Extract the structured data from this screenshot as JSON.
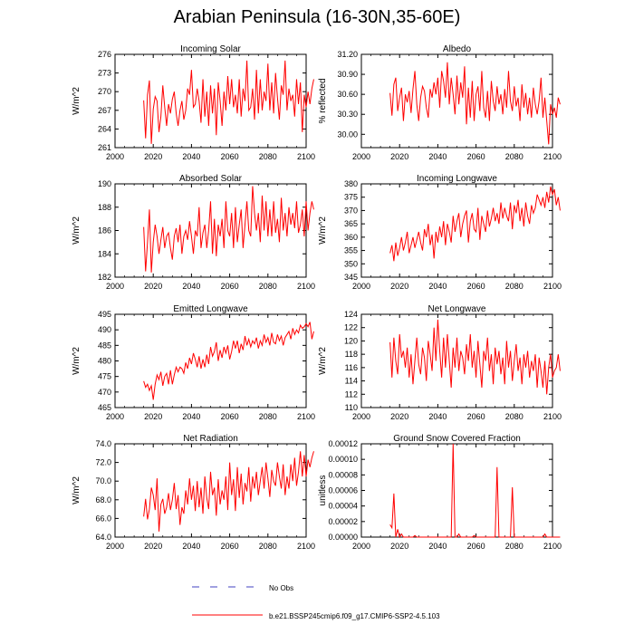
{
  "title": "Arabian Peninsula (16-30N,35-60E)",
  "colors": {
    "model": "#ff0000",
    "obs": "#4040c0",
    "axis": "#000000"
  },
  "legend": {
    "obs_label": "No Obs",
    "model_label": "b.e21.BSSP245cmip6.f09_g17.CMIP6-SSP2-4.5.103"
  },
  "chart_data": [
    {
      "type": "line",
      "id": "incoming-solar",
      "title": "Incoming Solar",
      "ylabel": "W/m^2",
      "xlim": [
        2000,
        2100
      ],
      "ylim": [
        261,
        276
      ],
      "xticks": [
        2000,
        2020,
        2040,
        2060,
        2080,
        2100
      ],
      "yticks": [
        261,
        264,
        267,
        270,
        273,
        276
      ],
      "ytick_labels": [
        "261",
        "264",
        "267",
        "270",
        "273",
        "276"
      ],
      "x_start": 2015,
      "values": [
        268.6,
        262.5,
        269.5,
        271.8,
        261.6,
        267.2,
        269.2,
        268.5,
        263.5,
        266.0,
        271.0,
        267.5,
        264.5,
        268.0,
        266.5,
        268.8,
        270.0,
        266.5,
        264.5,
        267.0,
        268.5,
        265.5,
        267.0,
        270.5,
        269.5,
        273.5,
        267.5,
        268.0,
        270.5,
        268.5,
        265.0,
        272.0,
        266.0,
        270.0,
        264.5,
        271.0,
        266.5,
        270.5,
        263.0,
        271.5,
        268.5,
        264.5,
        270.0,
        267.0,
        272.5,
        268.0,
        272.0,
        267.5,
        269.5,
        266.5,
        272.0,
        266.0,
        270.5,
        268.5,
        275.0,
        267.0,
        267.5,
        270.5,
        265.5,
        273.5,
        266.5,
        272.0,
        267.0,
        270.0,
        268.5,
        274.5,
        267.0,
        271.5,
        266.5,
        273.0,
        269.0,
        265.5,
        271.0,
        269.5,
        275.0,
        267.0,
        270.5,
        268.5,
        269.5,
        266.0,
        272.0,
        268.0,
        271.5,
        263.5,
        269.5,
        267.5,
        270.0,
        268.0,
        270.5,
        272.0
      ]
    },
    {
      "type": "line",
      "id": "albedo",
      "title": "Albedo",
      "ylabel": "% reflected",
      "xlim": [
        2000,
        2100
      ],
      "ylim": [
        29.8,
        31.2
      ],
      "xticks": [
        2000,
        2020,
        2040,
        2060,
        2080,
        2100
      ],
      "yticks": [
        30.0,
        30.3,
        30.6,
        30.9,
        31.2
      ],
      "ytick_labels": [
        "30.00",
        "30.30",
        "30.60",
        "30.90",
        "31.20"
      ],
      "x_start": 2015,
      "values": [
        30.62,
        30.28,
        30.75,
        30.85,
        30.35,
        30.55,
        30.7,
        30.2,
        30.6,
        30.48,
        30.65,
        30.32,
        30.68,
        30.95,
        30.45,
        30.2,
        30.55,
        30.72,
        30.65,
        30.4,
        30.25,
        30.68,
        30.55,
        30.78,
        30.6,
        30.85,
        30.4,
        30.95,
        30.8,
        30.55,
        31.08,
        30.45,
        30.85,
        30.6,
        30.3,
        30.88,
        30.45,
        30.78,
        30.55,
        31.02,
        30.15,
        30.7,
        30.25,
        30.8,
        30.2,
        30.6,
        30.72,
        30.35,
        30.95,
        30.4,
        30.25,
        30.65,
        30.2,
        30.8,
        30.5,
        30.35,
        30.72,
        30.45,
        30.6,
        30.3,
        30.68,
        30.4,
        30.95,
        30.5,
        30.35,
        30.72,
        30.42,
        30.55,
        30.2,
        30.75,
        30.4,
        30.62,
        30.3,
        30.55,
        30.25,
        30.7,
        30.45,
        30.3,
        30.5,
        30.85,
        30.25,
        30.55,
        30.2,
        29.85,
        30.45,
        30.3,
        30.4,
        30.25,
        30.55,
        30.45
      ]
    },
    {
      "type": "line",
      "id": "absorbed-solar",
      "title": "Absorbed Solar",
      "ylabel": "W/m^2",
      "xlim": [
        2000,
        2100
      ],
      "ylim": [
        182,
        190
      ],
      "xticks": [
        2000,
        2020,
        2040,
        2060,
        2080,
        2100
      ],
      "yticks": [
        182,
        184,
        186,
        188,
        190
      ],
      "ytick_labels": [
        "182",
        "184",
        "186",
        "188",
        "190"
      ],
      "x_start": 2015,
      "values": [
        186.3,
        182.5,
        185.0,
        187.8,
        182.4,
        185.0,
        186.5,
        185.5,
        184.0,
        185.2,
        186.3,
        184.5,
        185.5,
        185.8,
        184.5,
        183.5,
        185.5,
        186.2,
        185.0,
        186.5,
        184.0,
        185.5,
        186.0,
        185.2,
        186.8,
        185.5,
        184.0,
        186.0,
        185.5,
        188.0,
        184.5,
        185.8,
        186.5,
        184.5,
        186.0,
        188.5,
        184.0,
        187.0,
        183.8,
        186.5,
        185.5,
        187.0,
        184.5,
        188.5,
        186.0,
        185.5,
        187.5,
        184.5,
        188.0,
        185.0,
        186.5,
        187.8,
        184.5,
        186.5,
        188.5,
        186.0,
        185.5,
        189.8,
        187.5,
        186.0,
        187.5,
        185.0,
        189.0,
        186.0,
        188.5,
        185.5,
        187.8,
        185.5,
        188.5,
        185.8,
        187.0,
        185.0,
        188.8,
        186.0,
        187.5,
        185.5,
        188.0,
        186.5,
        187.5,
        186.2,
        188.5,
        185.8,
        186.5,
        187.8,
        185.5,
        188.5,
        186.0,
        187.5,
        188.5,
        187.8
      ]
    },
    {
      "type": "line",
      "id": "incoming-longwave",
      "title": "Incoming Longwave",
      "ylabel": "W/m^2",
      "xlim": [
        2000,
        2100
      ],
      "ylim": [
        345,
        380
      ],
      "xticks": [
        2000,
        2020,
        2040,
        2060,
        2080,
        2100
      ],
      "yticks": [
        345,
        350,
        355,
        360,
        365,
        370,
        375,
        380
      ],
      "ytick_labels": [
        "345",
        "350",
        "355",
        "360",
        "365",
        "370",
        "375",
        "380"
      ],
      "x_start": 2015,
      "values": [
        354,
        357,
        351,
        358,
        353,
        356,
        360,
        355,
        358,
        362,
        354,
        357,
        360,
        356,
        359,
        362,
        358,
        355,
        363,
        360,
        365,
        357,
        361,
        352,
        362,
        358,
        364,
        360,
        366,
        357,
        365,
        362,
        358,
        368,
        362,
        366,
        369,
        360,
        365,
        368,
        370,
        358,
        366,
        369,
        363,
        362,
        371,
        359,
        368,
        365,
        362,
        370,
        364,
        367,
        371,
        366,
        369,
        365,
        373,
        367,
        371,
        368,
        366,
        373,
        363,
        372,
        369,
        374,
        366,
        371,
        364,
        373,
        368,
        365,
        372,
        369,
        371,
        376,
        374,
        372,
        375,
        371,
        377,
        373,
        379,
        376,
        378,
        372,
        375,
        370
      ]
    },
    {
      "type": "line",
      "id": "emitted-longwave",
      "title": "Emitted Longwave",
      "ylabel": "W/m^2",
      "xlim": [
        2000,
        2100
      ],
      "ylim": [
        465,
        495
      ],
      "xticks": [
        2000,
        2020,
        2040,
        2060,
        2080,
        2100
      ],
      "yticks": [
        465,
        470,
        475,
        480,
        485,
        490,
        495
      ],
      "ytick_labels": [
        "465",
        "470",
        "475",
        "480",
        "485",
        "490",
        "495"
      ],
      "x_start": 2015,
      "values": [
        473.5,
        471.5,
        472.5,
        470.5,
        472.0,
        467.5,
        472.5,
        475.5,
        474.0,
        476.5,
        472.0,
        475.0,
        476.0,
        472.5,
        477.0,
        472.5,
        475.5,
        478.0,
        476.5,
        478.0,
        477.5,
        476.0,
        479.5,
        477.5,
        481.0,
        479.0,
        482.5,
        480.5,
        478.0,
        481.5,
        477.5,
        480.5,
        478.0,
        482.0,
        479.0,
        484.5,
        481.5,
        483.0,
        486.0,
        480.0,
        483.5,
        481.0,
        484.5,
        482.5,
        485.0,
        480.5,
        483.0,
        486.5,
        484.0,
        486.5,
        482.5,
        485.5,
        483.5,
        488.0,
        485.0,
        487.0,
        484.5,
        486.5,
        485.5,
        487.5,
        484.0,
        486.5,
        485.0,
        488.5,
        486.0,
        487.5,
        485.0,
        489.0,
        486.0,
        485.5,
        488.5,
        486.5,
        488.0,
        485.0,
        487.5,
        488.5,
        489.5,
        487.0,
        490.5,
        488.5,
        490.0,
        489.0,
        491.5,
        490.5,
        491.0,
        492.0,
        491.0,
        492.5,
        487.0,
        489.5
      ]
    },
    {
      "type": "line",
      "id": "net-longwave",
      "title": "Net Longwave",
      "ylabel": "W/m^2",
      "xlim": [
        2000,
        2100
      ],
      "ylim": [
        110,
        124
      ],
      "xticks": [
        2000,
        2020,
        2040,
        2060,
        2080,
        2100
      ],
      "yticks": [
        110,
        112,
        114,
        116,
        118,
        120,
        122,
        124
      ],
      "ytick_labels": [
        "110",
        "112",
        "114",
        "116",
        "118",
        "120",
        "122",
        "124"
      ],
      "x_start": 2015,
      "values": [
        119.8,
        114.5,
        120.5,
        117.0,
        115.0,
        121.0,
        117.5,
        118.5,
        116.0,
        119.0,
        114.5,
        118.0,
        113.5,
        117.0,
        120.5,
        116.5,
        115.0,
        119.0,
        117.5,
        114.0,
        120.0,
        118.0,
        115.5,
        122.0,
        117.0,
        123.2,
        118.5,
        114.5,
        120.5,
        116.0,
        121.0,
        117.0,
        113.0,
        119.0,
        116.0,
        120.5,
        115.5,
        118.5,
        117.5,
        115.0,
        119.5,
        117.0,
        121.0,
        116.0,
        118.5,
        114.5,
        120.0,
        116.5,
        113.0,
        118.5,
        117.0,
        120.5,
        115.5,
        118.0,
        113.5,
        119.0,
        116.5,
        118.5,
        115.0,
        117.5,
        113.5,
        120.0,
        116.0,
        118.5,
        114.0,
        117.0,
        119.5,
        115.5,
        117.5,
        113.5,
        118.0,
        116.0,
        118.5,
        114.5,
        117.0,
        115.5,
        118.0,
        113.0,
        117.5,
        115.5,
        113.0,
        117.0,
        112.0,
        116.0,
        118.0,
        114.5,
        115.5,
        116.0,
        118.0,
        115.5
      ]
    },
    {
      "type": "line",
      "id": "net-radiation",
      "title": "Net Radiation",
      "ylabel": "W/m^2",
      "xlim": [
        2000,
        2100
      ],
      "ylim": [
        64,
        74
      ],
      "xticks": [
        2000,
        2020,
        2040,
        2060,
        2080,
        2100
      ],
      "yticks": [
        64,
        66,
        68,
        70,
        72,
        74
      ],
      "ytick_labels": [
        "64.0",
        "66.0",
        "68.0",
        "70.0",
        "72.0",
        "74.0"
      ],
      "x_start": 2015,
      "values": [
        66.2,
        68.1,
        65.9,
        67.0,
        69.3,
        68.5,
        66.9,
        70.3,
        64.6,
        67.5,
        68.1,
        66.5,
        67.2,
        68.7,
        66.9,
        68.0,
        69.8,
        67.0,
        68.5,
        65.3,
        67.2,
        66.5,
        69.0,
        67.5,
        70.3,
        68.0,
        69.5,
        66.8,
        70.0,
        67.2,
        69.3,
        66.5,
        70.5,
        68.2,
        67.0,
        71.0,
        68.5,
        69.3,
        66.3,
        70.2,
        67.5,
        69.0,
        68.0,
        70.5,
        66.9,
        72.0,
        68.5,
        70.2,
        66.8,
        71.5,
        68.2,
        70.8,
        67.5,
        69.8,
        68.9,
        71.5,
        67.8,
        70.5,
        69.2,
        71.0,
        68.5,
        70.0,
        71.5,
        69.2,
        72.0,
        70.3,
        68.3,
        71.2,
        70.0,
        69.5,
        72.0,
        70.5,
        69.2,
        71.8,
        68.5,
        70.5,
        69.2,
        71.8,
        70.0,
        72.5,
        69.5,
        71.0,
        73.2,
        70.5,
        72.8,
        70.5,
        72.3,
        71.5,
        72.5,
        73.2
      ]
    },
    {
      "type": "line",
      "id": "ground-snow",
      "title": "Ground Snow Covered Fraction",
      "ylabel": "unitless",
      "xlim": [
        2000,
        2100
      ],
      "ylim": [
        0,
        0.00012
      ],
      "xticks": [
        2000,
        2020,
        2040,
        2060,
        2080,
        2100
      ],
      "yticks": [
        0,
        2e-05,
        4e-05,
        6e-05,
        8e-05,
        0.0001,
        0.00012
      ],
      "ytick_labels": [
        "0.00000",
        "0.00002",
        "0.00004",
        "0.00006",
        "0.00008",
        "0.00010",
        "0.00012"
      ],
      "x_start": 2015,
      "values": [
        1.6e-05,
        1.2e-05,
        5.6e-05,
        0.0,
        1e-05,
        0.0,
        4e-06,
        0.0,
        0.0,
        0.0,
        0.0,
        0.0,
        0.0,
        2e-06,
        0.0,
        0.0,
        0.0,
        0.0,
        0.0,
        0.0,
        0.0,
        0.0,
        0.0,
        0.0,
        0.0,
        0.0,
        0.0,
        0.0,
        0.0,
        0.0,
        0.0,
        0.0,
        0.0,
        0.00012,
        0.0,
        0.0,
        4e-06,
        0.0,
        0.0,
        0.0,
        0.0,
        0.0,
        0.0,
        0.0,
        2e-06,
        0.0,
        0.0,
        0.0,
        0.0,
        0.0,
        0.0,
        0.0,
        0.0,
        0.0,
        0.0,
        0.0,
        9e-05,
        0.0,
        0.0,
        0.0,
        0.0,
        0.0,
        0.0,
        0.0,
        6.4e-05,
        0.0,
        0.0,
        0.0,
        0.0,
        0.0,
        0.0,
        0.0,
        0.0,
        0.0,
        0.0,
        0.0,
        0.0,
        0.0,
        0.0,
        0.0,
        0.0,
        4e-06,
        0.0,
        0.0,
        0.0,
        0.0,
        0.0,
        0.0,
        0.0,
        0.0
      ]
    }
  ]
}
